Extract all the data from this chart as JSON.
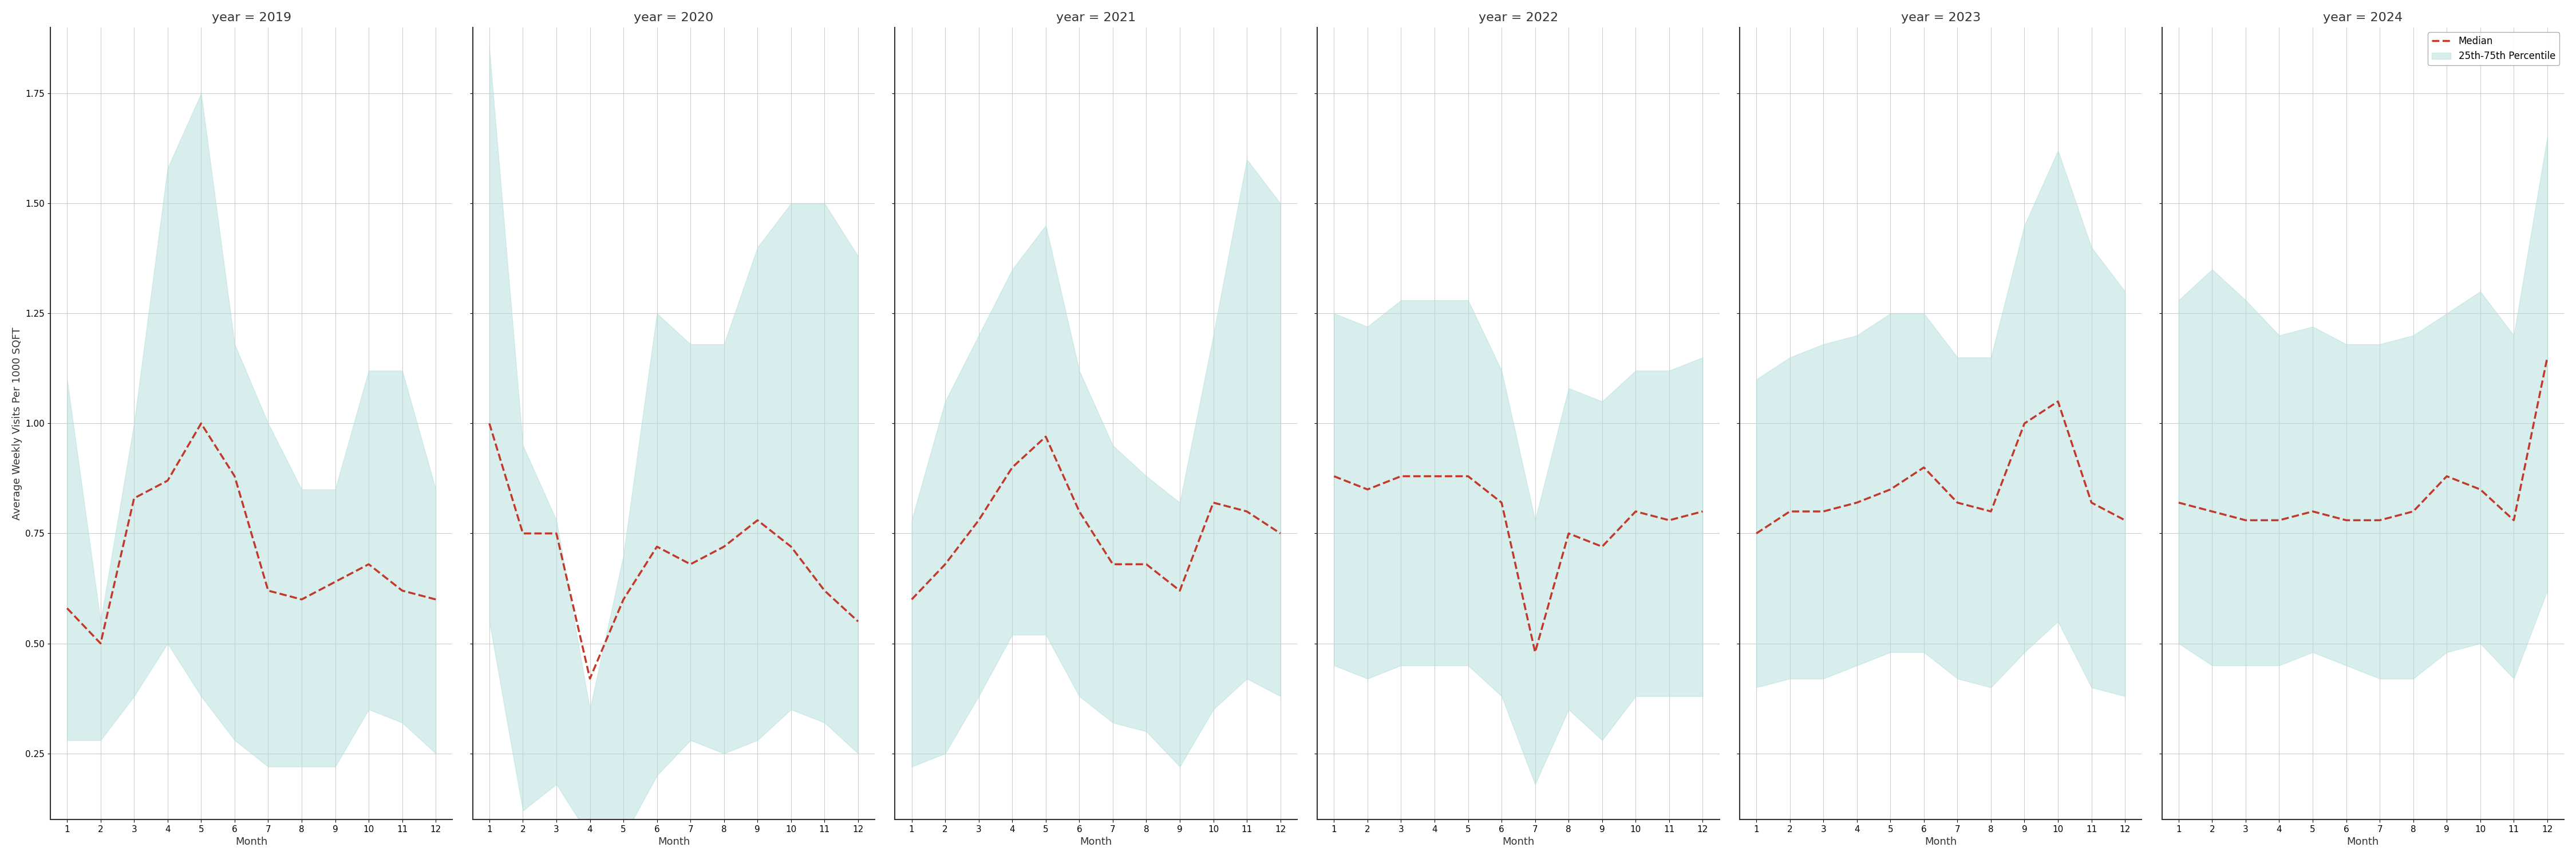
{
  "years": [
    2019,
    2020,
    2021,
    2022,
    2023,
    2024
  ],
  "months": [
    1,
    2,
    3,
    4,
    5,
    6,
    7,
    8,
    9,
    10,
    11,
    12
  ],
  "median": {
    "2019": [
      0.58,
      0.5,
      0.83,
      0.87,
      1.0,
      0.88,
      0.62,
      0.6,
      0.64,
      0.68,
      0.62,
      0.6
    ],
    "2020": [
      1.0,
      0.75,
      0.75,
      0.42,
      0.6,
      0.72,
      0.68,
      0.72,
      0.78,
      0.72,
      0.62,
      0.55
    ],
    "2021": [
      0.6,
      0.68,
      0.78,
      0.9,
      0.97,
      0.8,
      0.68,
      0.68,
      0.62,
      0.82,
      0.8,
      0.75
    ],
    "2022": [
      0.88,
      0.85,
      0.88,
      0.88,
      0.88,
      0.82,
      0.48,
      0.75,
      0.72,
      0.8,
      0.78,
      0.8
    ],
    "2023": [
      0.75,
      0.8,
      0.8,
      0.82,
      0.85,
      0.9,
      0.82,
      0.8,
      1.0,
      1.05,
      0.82,
      0.78
    ],
    "2024": [
      0.82,
      0.8,
      0.78,
      0.78,
      0.8,
      0.78,
      0.78,
      0.8,
      0.88,
      0.85,
      0.78,
      1.15
    ]
  },
  "p25": {
    "2019": [
      0.28,
      0.28,
      0.38,
      0.5,
      0.38,
      0.28,
      0.22,
      0.22,
      0.22,
      0.35,
      0.32,
      0.25
    ],
    "2020": [
      0.55,
      0.12,
      0.18,
      0.06,
      0.06,
      0.2,
      0.28,
      0.25,
      0.28,
      0.35,
      0.32,
      0.25
    ],
    "2021": [
      0.22,
      0.25,
      0.38,
      0.52,
      0.52,
      0.38,
      0.32,
      0.3,
      0.22,
      0.35,
      0.42,
      0.38
    ],
    "2022": [
      0.45,
      0.42,
      0.45,
      0.45,
      0.45,
      0.38,
      0.18,
      0.35,
      0.28,
      0.38,
      0.38,
      0.38
    ],
    "2023": [
      0.4,
      0.42,
      0.42,
      0.45,
      0.48,
      0.48,
      0.42,
      0.4,
      0.48,
      0.55,
      0.4,
      0.38
    ],
    "2024": [
      0.5,
      0.45,
      0.45,
      0.45,
      0.48,
      0.45,
      0.42,
      0.42,
      0.48,
      0.5,
      0.42,
      0.62
    ]
  },
  "p75": {
    "2019": [
      1.1,
      0.55,
      1.0,
      1.58,
      1.75,
      1.18,
      1.0,
      0.85,
      0.85,
      1.12,
      1.12,
      0.85
    ],
    "2020": [
      1.85,
      0.95,
      0.78,
      0.35,
      0.7,
      1.25,
      1.18,
      1.18,
      1.4,
      1.5,
      1.5,
      1.38
    ],
    "2021": [
      0.78,
      1.05,
      1.2,
      1.35,
      1.45,
      1.12,
      0.95,
      0.88,
      0.82,
      1.2,
      1.6,
      1.5
    ],
    "2022": [
      1.25,
      1.22,
      1.28,
      1.28,
      1.28,
      1.12,
      0.78,
      1.08,
      1.05,
      1.12,
      1.12,
      1.15
    ],
    "2023": [
      1.1,
      1.15,
      1.18,
      1.2,
      1.25,
      1.25,
      1.15,
      1.15,
      1.45,
      1.62,
      1.4,
      1.3
    ],
    "2024": [
      1.28,
      1.35,
      1.28,
      1.2,
      1.22,
      1.18,
      1.18,
      1.2,
      1.25,
      1.3,
      1.2,
      1.65
    ]
  },
  "fill_color": "#b2dfdb",
  "fill_alpha": 0.5,
  "line_color": "#c0392b",
  "line_style": "--",
  "line_width": 2.5,
  "ylabel": "Average Weekly Visits Per 1000 SQFT",
  "xlabel": "Month",
  "ylim": [
    0.1,
    1.9
  ],
  "yticks": [
    0.25,
    0.5,
    0.75,
    1.0,
    1.25,
    1.5,
    1.75
  ],
  "legend_median": "Median",
  "legend_fill": "25th-75th Percentile",
  "bg_color": "#ffffff",
  "grid_color": "#cccccc",
  "title_fontsize": 16,
  "tick_fontsize": 11,
  "label_fontsize": 13
}
